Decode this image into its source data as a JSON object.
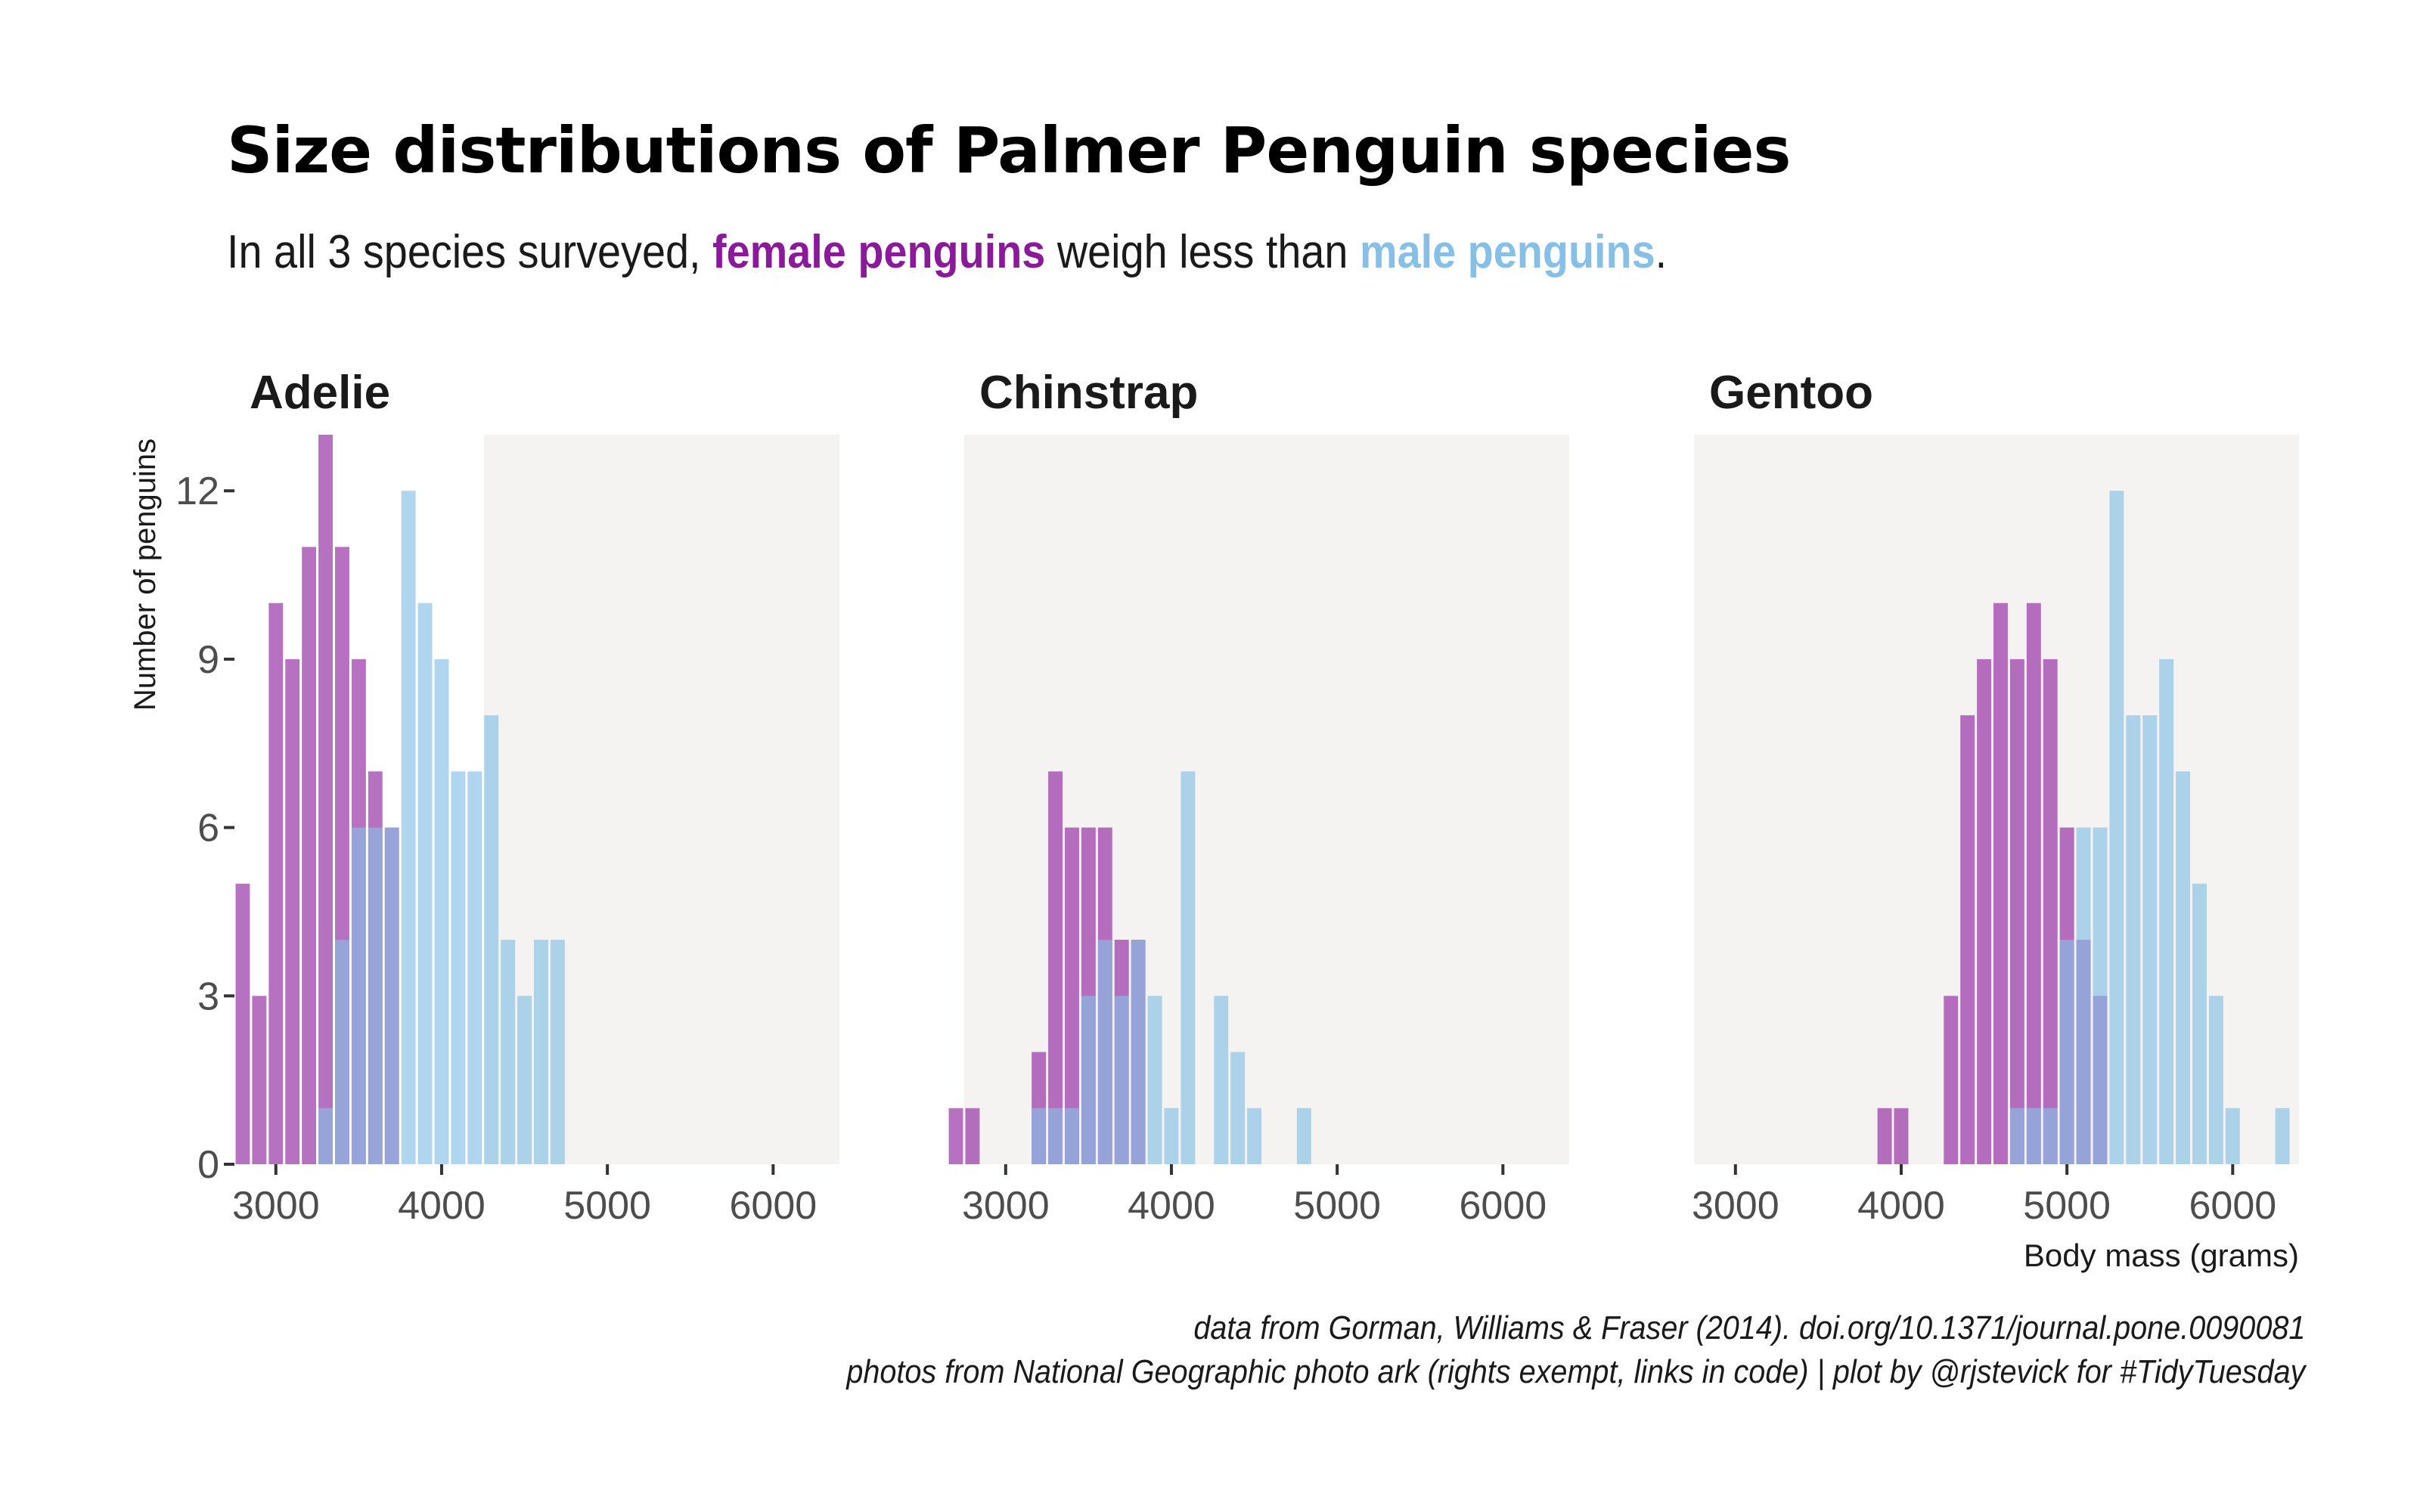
{
  "chart_data": {
    "type": "bar",
    "title": "Size distributions of Palmer Penguin species",
    "subtitle": {
      "prefix": "In all 3 species surveyed, ",
      "female": "female penguins",
      "middle": " weigh less than ",
      "male": "male penguins",
      "suffix": "."
    },
    "xlabel": "Body mass (grams)",
    "ylabel": "Number of penguins",
    "xlim": [
      2750,
      6400
    ],
    "ylim": [
      0,
      13
    ],
    "xticks": [
      3000,
      4000,
      5000,
      6000
    ],
    "yticks": [
      0,
      3,
      6,
      9,
      12
    ],
    "bin_width": 100,
    "colors": {
      "female": "#8b1a9b",
      "male": "#86c0e6",
      "photo_bg": "#f4f3f1"
    },
    "panels": [
      {
        "name": "Adelie",
        "series": [
          {
            "name": "female penguins",
            "x": [
              2800,
              2900,
              3000,
              3100,
              3200,
              3300,
              3400,
              3500,
              3600,
              3700
            ],
            "values": [
              5,
              3,
              10,
              9,
              11,
              13,
              11,
              9,
              7,
              6
            ]
          },
          {
            "name": "male penguins",
            "x": [
              3300,
              3400,
              3500,
              3600,
              3700,
              3800,
              3900,
              4000,
              4100,
              4200,
              4300,
              4400,
              4500,
              4600,
              4700
            ],
            "values": [
              1,
              4,
              6,
              6,
              6,
              12,
              10,
              9,
              7,
              7,
              8,
              4,
              3,
              4,
              4
            ]
          }
        ]
      },
      {
        "name": "Chinstrap",
        "series": [
          {
            "name": "female penguins",
            "x": [
              2700,
              2800,
              3200,
              3300,
              3400,
              3500,
              3600,
              3700,
              3800
            ],
            "values": [
              1,
              1,
              2,
              7,
              6,
              6,
              6,
              4,
              4
            ]
          },
          {
            "name": "male penguins",
            "x": [
              3200,
              3300,
              3400,
              3500,
              3600,
              3700,
              3800,
              3900,
              4000,
              4100,
              4300,
              4400,
              4500,
              4800
            ],
            "values": [
              1,
              1,
              1,
              3,
              4,
              3,
              4,
              3,
              1,
              7,
              3,
              2,
              1,
              1
            ]
          }
        ]
      },
      {
        "name": "Gentoo",
        "series": [
          {
            "name": "female penguins",
            "x": [
              3900,
              4000,
              4300,
              4400,
              4500,
              4600,
              4700,
              4800,
              4900,
              5000,
              5100,
              5200
            ],
            "values": [
              1,
              1,
              3,
              8,
              9,
              10,
              9,
              10,
              9,
              6,
              4,
              3
            ]
          },
          {
            "name": "male penguins",
            "x": [
              4700,
              4800,
              4900,
              5000,
              5100,
              5200,
              5300,
              5400,
              5500,
              5600,
              5700,
              5800,
              5900,
              6000,
              6300
            ],
            "values": [
              1,
              1,
              1,
              4,
              6,
              6,
              12,
              8,
              8,
              9,
              7,
              5,
              3,
              1,
              1
            ]
          }
        ]
      }
    ]
  },
  "caption": {
    "line1": "data from Gorman, Williams & Fraser (2014). doi.org/10.1371/journal.pone.0090081",
    "line2": "photos from National Geographic photo ark (rights exempt, links in code) | plot by @rjstevick for #TidyTuesday"
  }
}
